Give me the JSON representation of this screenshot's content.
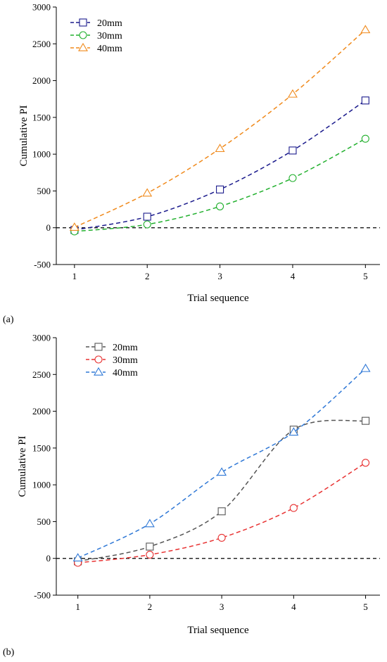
{
  "chart_data": [
    {
      "type": "line",
      "panel_label": "(a)",
      "xlabel": "Trial sequence",
      "ylabel": "Cumulative PI",
      "x": [
        1,
        2,
        3,
        4,
        5
      ],
      "xlim": [
        0.75,
        5.2
      ],
      "ylim": [
        -500,
        3000
      ],
      "x_ticks": [
        "1",
        "2",
        "3",
        "4",
        "5"
      ],
      "y_ticks": [
        "-500",
        "0",
        "500",
        "1000",
        "1500",
        "2000",
        "2500",
        "3000"
      ],
      "reference_line": 0,
      "legend_position": "top-left",
      "series": [
        {
          "name": "20mm",
          "marker": "square",
          "color": "#1a1a8c",
          "values": [
            -30,
            150,
            520,
            1050,
            1730
          ]
        },
        {
          "name": "30mm",
          "marker": "circle",
          "color": "#22b02e",
          "values": [
            -50,
            45,
            290,
            675,
            1210
          ]
        },
        {
          "name": "40mm",
          "marker": "triangle",
          "color": "#f08a1c",
          "values": [
            5,
            470,
            1075,
            1815,
            2690
          ]
        }
      ]
    },
    {
      "type": "line",
      "panel_label": "(b)",
      "xlabel": "Trial sequence",
      "ylabel": "Cumulative PI",
      "x": [
        1,
        2,
        3,
        4,
        5
      ],
      "xlim": [
        0.7,
        5.2
      ],
      "ylim": [
        -500,
        3000
      ],
      "x_ticks": [
        "1",
        "2",
        "3",
        "4",
        "5"
      ],
      "y_ticks": [
        "-500",
        "0",
        "500",
        "1000",
        "1500",
        "2000",
        "2500",
        "3000"
      ],
      "reference_line": 0,
      "legend_position": "top-left",
      "series": [
        {
          "name": "20mm",
          "marker": "square",
          "color": "#555555",
          "values": [
            -40,
            160,
            640,
            1750,
            1870
          ]
        },
        {
          "name": "30mm",
          "marker": "circle",
          "color": "#e83232",
          "values": [
            -60,
            50,
            280,
            685,
            1300
          ]
        },
        {
          "name": "40mm",
          "marker": "triangle",
          "color": "#2f78d6",
          "values": [
            5,
            470,
            1170,
            1715,
            2580
          ]
        }
      ]
    }
  ]
}
